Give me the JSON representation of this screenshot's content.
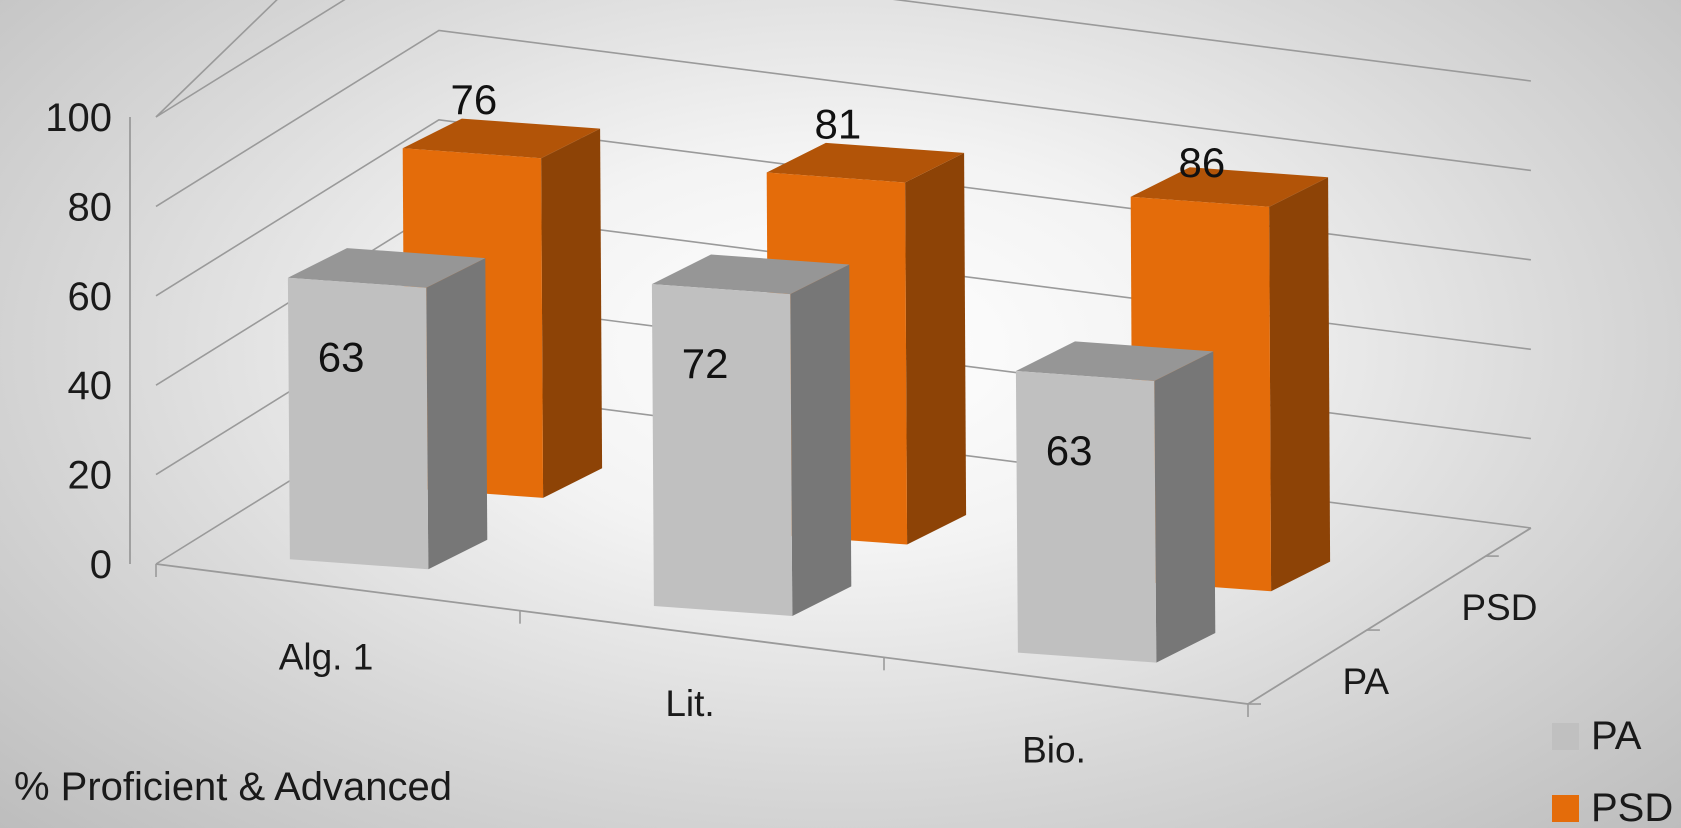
{
  "chart_data": {
    "type": "bar",
    "categories": [
      "Alg. 1",
      "Lit.",
      "Bio."
    ],
    "depth_categories": [
      "PSD",
      "PA"
    ],
    "series": [
      {
        "name": "PA",
        "values": [
          63,
          72,
          63
        ],
        "color": "#c0c0c0"
      },
      {
        "name": "PSD",
        "values": [
          76,
          81,
          86
        ],
        "color": "#e46c0a"
      }
    ],
    "y_ticks": [
      0,
      20,
      40,
      60,
      80,
      100
    ],
    "ylim": [
      0,
      100
    ],
    "grid": true,
    "legend_position": "bottom-right",
    "caption": "% Proficient & Advanced"
  }
}
